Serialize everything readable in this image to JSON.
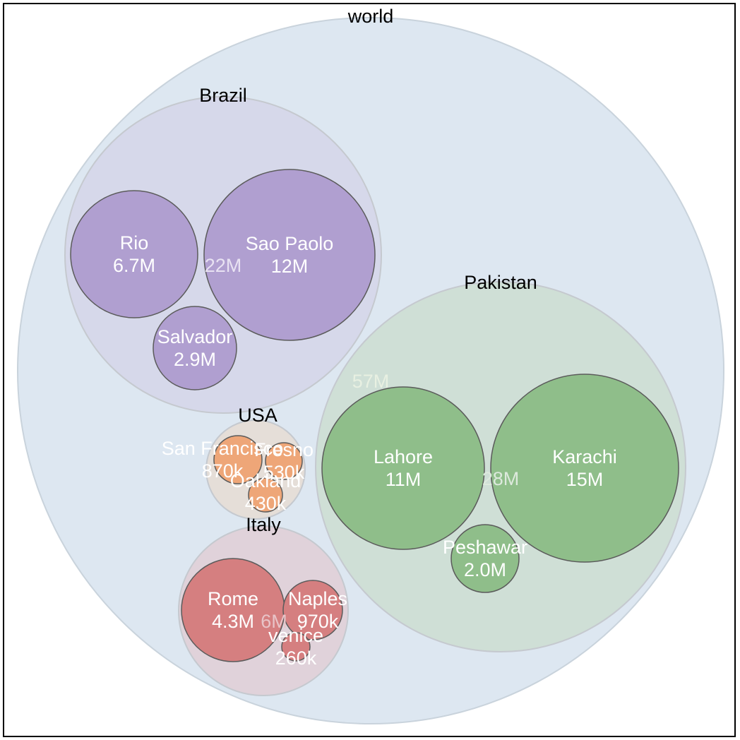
{
  "chart_data": {
    "type": "circle-packing",
    "title": "",
    "root": {
      "name": "world",
      "value_label": "",
      "color": "#dde7f1",
      "children": [
        {
          "name": "Brazil",
          "value_label": "22M",
          "color": "#d6d8ea",
          "leaf_color": "#b09fd0",
          "children": [
            {
              "name": "Rio",
              "value": 6.7,
              "value_label": "6.7M"
            },
            {
              "name": "Sao Paolo",
              "value": 12,
              "value_label": "12M"
            },
            {
              "name": "Salvador",
              "value": 2.9,
              "value_label": "2.9M"
            }
          ]
        },
        {
          "name": "Pakistan",
          "value_label": "28M",
          "color": "#cfdfd6",
          "leaf_color": "#8fbe8a",
          "children": [
            {
              "name": "Lahore",
              "value": 11,
              "value_label": "11M"
            },
            {
              "name": "Karachi",
              "value": 15,
              "value_label": "15M"
            },
            {
              "name": "Peshawar",
              "value": 2.0,
              "value_label": "2.0M"
            }
          ]
        },
        {
          "name": "USA",
          "value_label": "",
          "color": "#e5ded8",
          "leaf_color": "#eea678",
          "children": [
            {
              "name": "San Francisco",
              "value": 0.87,
              "value_label": "870k"
            },
            {
              "name": "Fresno",
              "value": 0.53,
              "value_label": "530k"
            },
            {
              "name": "Oakland",
              "value": 0.43,
              "value_label": "430k"
            }
          ]
        },
        {
          "name": "Italy",
          "value_label": "6M",
          "color": "#e0d2da",
          "leaf_color": "#d57f80",
          "children": [
            {
              "name": "Rome",
              "value": 4.3,
              "value_label": "4.3M"
            },
            {
              "name": "Naples",
              "value": 0.97,
              "value_label": "970k"
            },
            {
              "name": "venice",
              "value": 0.26,
              "value_label": "260k"
            }
          ]
        }
      ]
    },
    "extra_labels": [
      {
        "text": "57M"
      }
    ]
  }
}
